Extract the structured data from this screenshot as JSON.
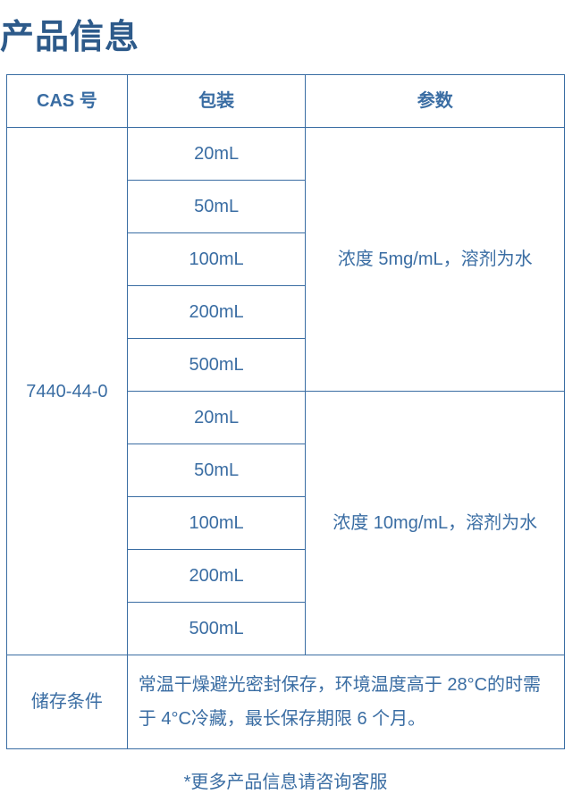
{
  "colors": {
    "title": "#2d5a8a",
    "border": "#3a6da3",
    "text": "#3a6da3",
    "header_text": "#3a6da3"
  },
  "title": "产品信息",
  "headers": {
    "cas": "CAS 号",
    "packaging": "包装",
    "params": "参数"
  },
  "cas_number": "7440-44-0",
  "group1": {
    "packages": [
      "20mL",
      "50mL",
      "100mL",
      "200mL",
      "500mL"
    ],
    "param": "浓度 5mg/mL，溶剂为水"
  },
  "group2": {
    "packages": [
      "20mL",
      "50mL",
      "100mL",
      "200mL",
      "500mL"
    ],
    "param": "浓度 10mg/mL，溶剂为水"
  },
  "storage": {
    "label": "储存条件",
    "text": "常温干燥避光密封保存，环境温度高于 28°C的时需于 4°C冷藏，最长保存期限 6 个月。"
  },
  "footnote": "*更多产品信息请咨询客服"
}
